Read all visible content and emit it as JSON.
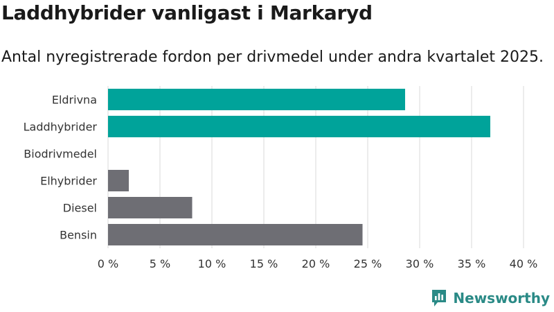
{
  "title": "Laddhybrider vanligast i Markaryd",
  "subtitle": "Antal nyregistrerade fordon per drivmedel under andra kvartalet 2025.",
  "brand": "Newsworthy",
  "colors": {
    "highlight": "#00a39a",
    "base": "#6e6e74",
    "grid": "#d9d9d9",
    "brand": "#2a8a86"
  },
  "chart_data": {
    "type": "bar",
    "orientation": "horizontal",
    "categories": [
      "Eldrivna",
      "Laddhybrider",
      "Biodrivmedel",
      "Elhybrider",
      "Diesel",
      "Bensin"
    ],
    "values": [
      28.6,
      36.8,
      0,
      2.0,
      8.1,
      24.5
    ],
    "highlighted": [
      true,
      true,
      false,
      false,
      false,
      false
    ],
    "xlim": [
      0,
      40
    ],
    "xticks": [
      0,
      5,
      10,
      15,
      20,
      25,
      30,
      35,
      40
    ],
    "xtick_labels": [
      "0 %",
      "5 %",
      "10 %",
      "15 %",
      "20 %",
      "25 %",
      "30 %",
      "35 %",
      "40 %"
    ],
    "xlabel": "",
    "ylabel": "",
    "grid": true
  }
}
